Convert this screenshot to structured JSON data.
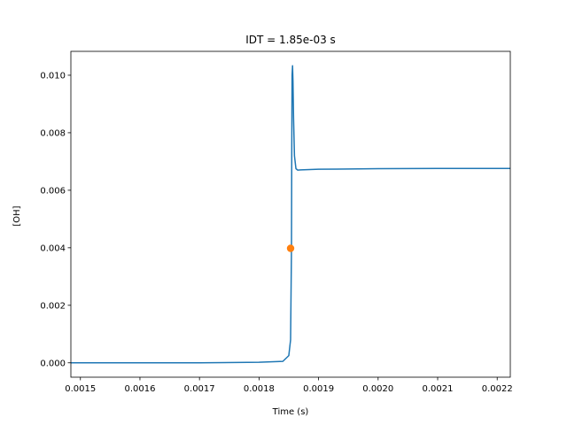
{
  "chart_data": {
    "type": "line",
    "title": "IDT = 1.85e-03 s",
    "xlabel": "Time (s)",
    "ylabel": "[OH]",
    "xlim": [
      0.001484,
      0.002222
    ],
    "ylim": [
      -0.0005,
      0.01083
    ],
    "x_ticks": [
      0.0015,
      0.0016,
      0.0017,
      0.0018,
      0.0019,
      0.002,
      0.0021,
      0.0022
    ],
    "x_tick_labels": [
      "0.0015",
      "0.0016",
      "0.0017",
      "0.0018",
      "0.0019",
      "0.0020",
      "0.0021",
      "0.0022"
    ],
    "y_ticks": [
      0.0,
      0.002,
      0.004,
      0.006,
      0.008,
      0.01
    ],
    "y_tick_labels": [
      "0.000",
      "0.002",
      "0.004",
      "0.006",
      "0.008",
      "0.010"
    ],
    "grid": false,
    "series": [
      {
        "color": "#1f77b4",
        "x": [
          0.001484,
          0.0016,
          0.0017,
          0.0018,
          0.00184,
          0.00185,
          0.001853,
          0.0018545,
          0.001855,
          0.0018555,
          0.0018563,
          0.001857,
          0.001858,
          0.0018595,
          0.001862,
          0.001865,
          0.00187,
          0.0019,
          0.00195,
          0.002,
          0.0021,
          0.002222
        ],
        "y": [
          0.0,
          0.0,
          0.0,
          2e-05,
          5e-05,
          0.00025,
          0.0008,
          0.004,
          0.0075,
          0.01,
          0.01033,
          0.0098,
          0.0085,
          0.0072,
          0.00675,
          0.0067,
          0.00671,
          0.00673,
          0.00674,
          0.00675,
          0.00676,
          0.00676
        ]
      },
      {
        "type": "scatter",
        "color": "#ff7f0e",
        "x": [
          0.001853
        ],
        "y": [
          0.00398
        ]
      }
    ]
  }
}
